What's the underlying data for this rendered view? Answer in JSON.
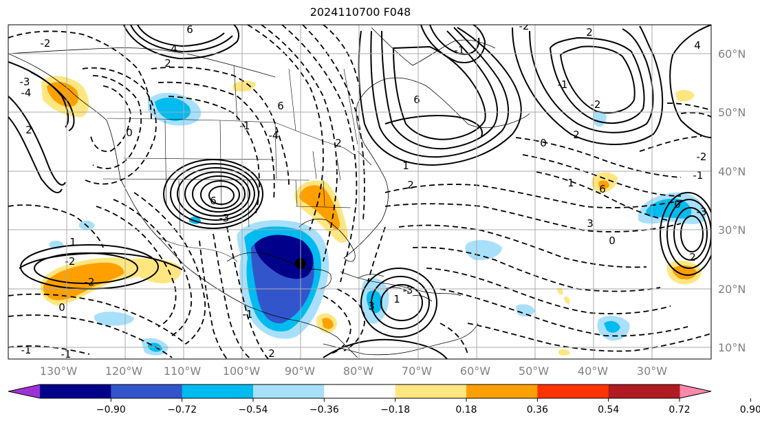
{
  "title": "2024110700 F048",
  "map": {
    "lon_labels": [
      "130°W",
      "120°W",
      "110°W",
      "100°W",
      "90°W",
      "80°W",
      "70°W",
      "60°W",
      "50°W",
      "40°W",
      "30°W"
    ],
    "lat_labels": [
      "60°N",
      "50°N",
      "40°N",
      "30°N",
      "20°N",
      "10°N"
    ],
    "contour_labels": [
      "-2",
      "6",
      "4",
      "2",
      "-3",
      "-4",
      "2",
      "6",
      "-1",
      "0",
      "6",
      "-3",
      "6",
      "-4",
      "2",
      "-1",
      "-2",
      "2",
      "-2",
      "-1",
      "2",
      "0",
      "-2",
      "4",
      "1",
      "6",
      "3",
      "0",
      "-1",
      "-3",
      "0",
      "2",
      "1",
      "2",
      "1",
      "-2",
      "-2",
      "0",
      "-1",
      "2",
      "3",
      "-3",
      "1",
      "-1",
      "-1"
    ]
  },
  "colorbar": {
    "ticks": [
      "−0.90",
      "−0.72",
      "−0.54",
      "−0.36",
      "−0.18",
      "0.18",
      "0.36",
      "0.54",
      "0.72",
      "0.90"
    ],
    "colors": [
      "#9d33d6",
      "#00008b",
      "#3355cc",
      "#00bbf0",
      "#a8e0fb",
      "#ffffff",
      "#ffe680",
      "#ffa000",
      "#ff3300",
      "#b01a22",
      "#ff88aa"
    ]
  }
}
